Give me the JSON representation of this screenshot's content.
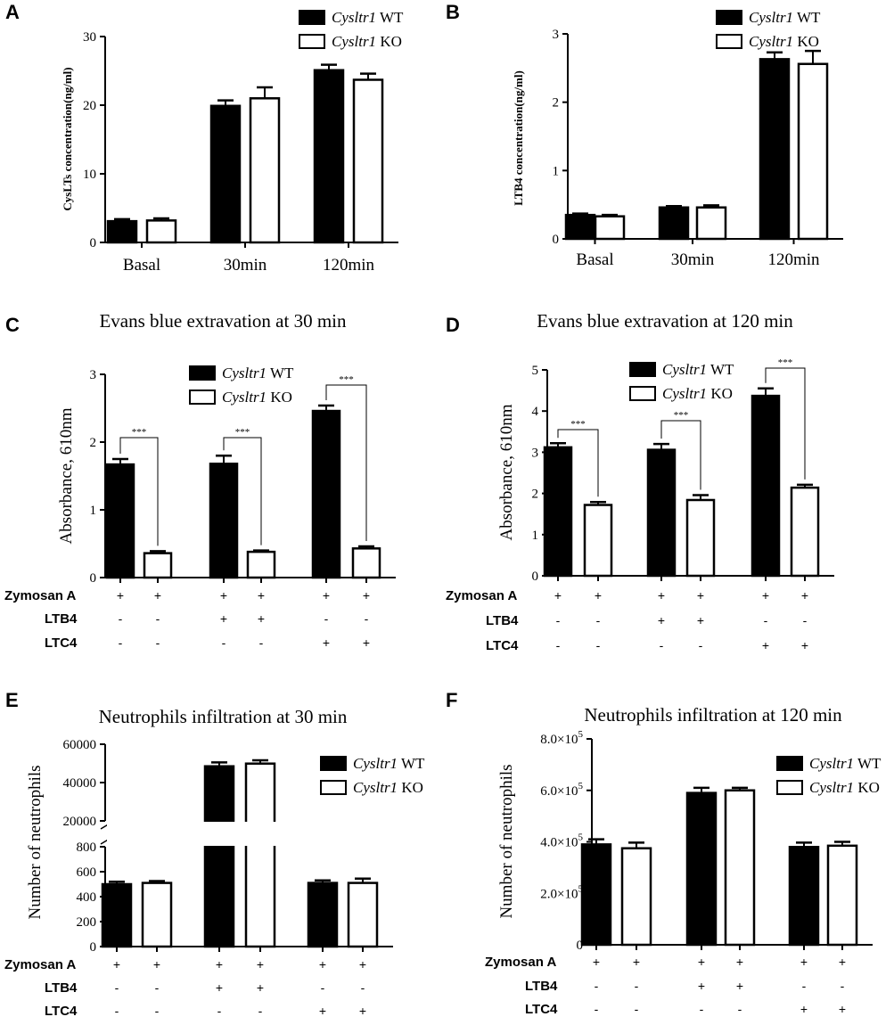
{
  "panels": [
    {
      "label": "A",
      "chart_data": {
        "type": "bar",
        "title": "",
        "ylabel": "CysLTs concentration(ng/ml)",
        "xlabel": "",
        "ylim": [
          0,
          30
        ],
        "yticks": [
          "0",
          "10",
          "20",
          "30"
        ],
        "categories": [
          "Basal",
          "30min",
          "120min"
        ],
        "series": [
          {
            "name": "Cysltr1 WT",
            "fill": "black",
            "values": [
              3.1,
              19.9,
              25.1
            ],
            "errors": [
              0.3,
              0.8,
              0.8
            ]
          },
          {
            "name": "Cysltr1 KO",
            "fill": "white",
            "values": [
              3.2,
              21.0,
              23.7
            ],
            "errors": [
              0.3,
              1.6,
              0.9
            ]
          }
        ],
        "legend": "top-right"
      }
    },
    {
      "label": "B",
      "chart_data": {
        "type": "bar",
        "title": "",
        "ylabel": "LTB4 concentration(ng/ml)",
        "xlabel": "",
        "ylim": [
          0,
          3
        ],
        "yticks": [
          "0",
          "1",
          "2",
          "3"
        ],
        "categories": [
          "Basal",
          "30min",
          "120min"
        ],
        "series": [
          {
            "name": "Cysltr1 WT",
            "fill": "black",
            "values": [
              0.35,
              0.46,
              2.63
            ],
            "errors": [
              0.02,
              0.02,
              0.1
            ]
          },
          {
            "name": "Cysltr1 KO",
            "fill": "white",
            "values": [
              0.33,
              0.46,
              2.56
            ],
            "errors": [
              0.02,
              0.03,
              0.19
            ]
          }
        ],
        "legend": "top-right"
      }
    },
    {
      "label": "C",
      "chart_data": {
        "type": "bar",
        "title": "Evans blue extravation at 30 min",
        "ylabel": "Absorbance, 610nm",
        "xlabel": "",
        "ylim": [
          0,
          3
        ],
        "yticks": [
          "0",
          "1",
          "2",
          "3"
        ],
        "groups": 3,
        "series": [
          {
            "name": "Cysltr1 WT",
            "fill": "black",
            "values": [
              1.67,
              1.68,
              2.46
            ],
            "errors": [
              0.08,
              0.12,
              0.08
            ]
          },
          {
            "name": "Cysltr1 KO",
            "fill": "white",
            "values": [
              0.36,
              0.38,
              0.43
            ],
            "errors": [
              0.03,
              0.02,
              0.03
            ]
          }
        ],
        "significance": [
          "***",
          "***",
          "***"
        ],
        "conditions": [
          {
            "label": "Zymosan A",
            "values": [
              "+",
              "+",
              "+",
              "+",
              "+",
              "+"
            ]
          },
          {
            "label": "LTB4",
            "values": [
              "-",
              "-",
              "+",
              "+",
              "-",
              "-"
            ]
          },
          {
            "label": "LTC4",
            "values": [
              "-",
              "-",
              "-",
              "-",
              "+",
              "+"
            ]
          }
        ],
        "legend": "top-center"
      }
    },
    {
      "label": "D",
      "chart_data": {
        "type": "bar",
        "title": "Evans blue extravation at 120 min",
        "ylabel": "Absorbance, 610nm",
        "xlabel": "",
        "ylim": [
          0,
          5
        ],
        "yticks": [
          "0",
          "1",
          "2",
          "3",
          "4",
          "5"
        ],
        "groups": 3,
        "series": [
          {
            "name": "Cysltr1 WT",
            "fill": "black",
            "values": [
              3.12,
              3.06,
              4.37
            ],
            "errors": [
              0.1,
              0.14,
              0.18
            ]
          },
          {
            "name": "Cysltr1 KO",
            "fill": "white",
            "values": [
              1.72,
              1.84,
              2.14
            ],
            "errors": [
              0.07,
              0.12,
              0.07
            ]
          }
        ],
        "significance": [
          "***",
          "***",
          "***"
        ],
        "conditions": [
          {
            "label": "Zymosan A",
            "values": [
              "+",
              "+",
              "+",
              "+",
              "+",
              "+"
            ]
          },
          {
            "label": "LTB4",
            "values": [
              "-",
              "-",
              "+",
              "+",
              "-",
              "-"
            ]
          },
          {
            "label": "LTC4",
            "values": [
              "-",
              "-",
              "-",
              "-",
              "+",
              "+"
            ]
          }
        ],
        "legend": "top-center"
      }
    },
    {
      "label": "E",
      "chart_data": {
        "type": "bar",
        "title": "Neutrophils infiltration at 30 min",
        "ylabel": "Number of neutrophils",
        "xlabel": "",
        "ylim": [
          0,
          60000
        ],
        "axis_break": {
          "lower": [
            0,
            800
          ],
          "upper": [
            20000,
            60000
          ]
        },
        "yticks_lower": [
          "0",
          "200",
          "400",
          "600",
          "800"
        ],
        "yticks_upper": [
          "20000",
          "40000",
          "60000"
        ],
        "groups": 3,
        "series": [
          {
            "name": "Cysltr1 WT",
            "fill": "black",
            "values": [
              500,
              48500,
              510
            ],
            "errors": [
              20,
              2000,
              20
            ]
          },
          {
            "name": "Cysltr1 KO",
            "fill": "white",
            "values": [
              510,
              49900,
              510
            ],
            "errors": [
              15,
              1700,
              35
            ]
          }
        ],
        "conditions": [
          {
            "label": "Zymosan A",
            "values": [
              "+",
              "+",
              "+",
              "+",
              "+",
              "+"
            ]
          },
          {
            "label": "LTB4",
            "values": [
              "-",
              "-",
              "+",
              "+",
              "-",
              "-"
            ]
          },
          {
            "label": "LTC4",
            "values": [
              "-",
              "-",
              "-",
              "-",
              "+",
              "+"
            ]
          }
        ],
        "legend": "top-right"
      }
    },
    {
      "label": "F",
      "chart_data": {
        "type": "bar",
        "title": "Neutrophils infiltration at 120 min",
        "ylabel": "Number of neutrophils",
        "xlabel": "",
        "ylim": [
          0,
          800000
        ],
        "yticks": [
          {
            "mant": "0",
            "exp": ""
          },
          {
            "mant": "2.0×10",
            "exp": "5"
          },
          {
            "mant": "4.0×10",
            "exp": "5"
          },
          {
            "mant": "6.0×10",
            "exp": "5"
          },
          {
            "mant": "8.0×10",
            "exp": "5"
          }
        ],
        "groups": 3,
        "series": [
          {
            "name": "Cysltr1 WT",
            "fill": "black",
            "values": [
              390000,
              590000,
              380000
            ],
            "errors": [
              20000,
              20000,
              17000
            ]
          },
          {
            "name": "Cysltr1 KO",
            "fill": "white",
            "values": [
              375000,
              600000,
              385000
            ],
            "errors": [
              22000,
              10000,
              15000
            ]
          }
        ],
        "conditions": [
          {
            "label": "Zymosan A",
            "values": [
              "+",
              "+",
              "+",
              "+",
              "+",
              "+"
            ]
          },
          {
            "label": "LTB4",
            "values": [
              "-",
              "-",
              "+",
              "+",
              "-",
              "-"
            ]
          },
          {
            "label": "LTC4",
            "values": [
              "-",
              "-",
              "-",
              "-",
              "+",
              "+"
            ]
          }
        ],
        "legend": "top-right"
      }
    }
  ]
}
